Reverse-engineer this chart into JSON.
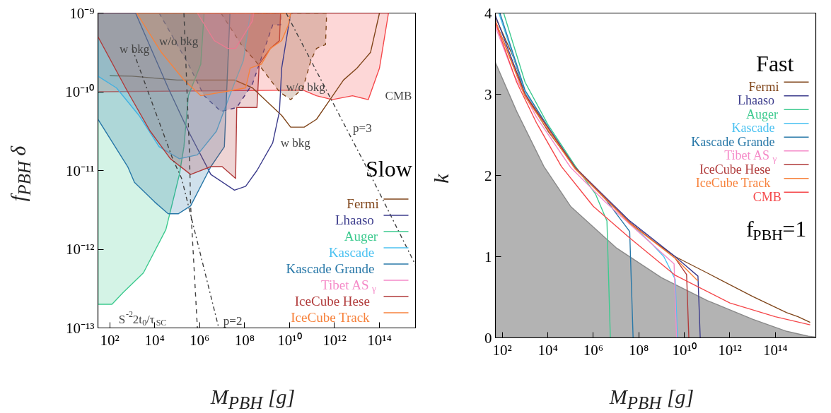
{
  "chart_data": [
    {
      "type": "area",
      "xlabel": "M$_{PBH}$ [g]",
      "ylabel": "f$_{PBH}$ δ",
      "log": "xy",
      "legend": "bottom right",
      "xlim": [
        30,
        4000000000000000.0
      ],
      "ylim": [
        1e-13,
        1e-09
      ],
      "xticks": [
        {
          "value": 100.0,
          "label": "10²"
        },
        {
          "value": 10000.0,
          "label": "10⁴"
        },
        {
          "value": 1000000.0,
          "label": "10⁶"
        },
        {
          "value": 100000000.0,
          "label": "10⁸"
        },
        {
          "value": 10000000000.0,
          "label": "10¹⁰"
        },
        {
          "value": 1000000000000.0,
          "label": "10¹²"
        },
        {
          "value": 100000000000000.0,
          "label": "10¹⁴"
        }
      ],
      "yticks": [
        {
          "value": 1e-13,
          "label": "10⁻¹³"
        },
        {
          "value": 1e-12,
          "label": "10⁻¹²"
        },
        {
          "value": 1e-11,
          "label": "10⁻¹¹"
        },
        {
          "value": 1e-10,
          "label": "10⁻¹⁰"
        },
        {
          "value": 1e-09,
          "label": "10⁻⁹"
        }
      ],
      "series": [
        {
          "type": "area",
          "color": "#f5484b",
          "x": [
            30,
            30,
            39800000000.0,
            158000000000.0,
            794000000000.0,
            6310000000000.0,
            31600000000000.0,
            100000000000000.0,
            251000000000000.0
          ],
          "values": [
            1e-09,
            1e-10,
            1.05e-10,
            8.91e-11,
            7.94e-11,
            8.91e-11,
            7.94e-11,
            2e-10,
            1e-09
          ]
        },
        {
          "type": "area",
          "color": "#80461b",
          "line_style": "dashed",
          "x": [
            8910000.0,
            70800000.0,
            562000000.0,
            3550000000.0,
            11200000000.0,
            39800000000.0,
            89100000000.0,
            158000000000.0,
            398000000000.0,
            447000000000.0
          ],
          "values": [
            1e-09,
            3.98e-10,
            2e-10,
            1e-10,
            7.94e-11,
            1.12e-10,
            2.51e-10,
            3.55e-10,
            3.98e-10,
            1e-09
          ]
        },
        {
          "type": "area",
          "color": "#3c3c8c",
          "line_style": "dashed",
          "x": [
            15800.0,
            316000.0,
            1580000.0,
            8910000.0,
            44700000.0,
            224000000.0,
            891000000.0,
            1780000000.0,
            3980000000.0,
            3980000000.0
          ],
          "values": [
            1e-09,
            2.24e-10,
            8.91e-11,
            5.62e-11,
            6.31e-11,
            1.26e-10,
            3.98e-10,
            7.08e-10,
            7.08e-10,
            1e-09
          ]
        },
        {
          "name": "Fermi",
          "type": "line",
          "color": "#80461b",
          "x": [
            100,
            1000.0,
            100000.0,
            35500000.0,
            224000000.0,
            4470000000.0,
            11200000000.0,
            44700000000.0,
            158000000000.0,
            631000000000.0,
            2510000000000.0,
            10000000000000.0,
            39800000000000.0,
            100000000000000.0
          ],
          "values": [
            1.6e-10,
            1.58e-10,
            1.41e-10,
            1.41e-10,
            1.12e-10,
            5.01e-11,
            3.55e-11,
            3.55e-11,
            4.47e-11,
            7.94e-11,
            1.41e-10,
            2e-10,
            3.16e-10,
            1e-09
          ]
        },
        {
          "name": "Lhaaso",
          "type": "line",
          "color": "#3c3c8c",
          "x": [
            1410.0,
            39800.0,
            316000.0,
            3160000.0,
            35500000.0,
            112000000.0,
            355000000.0,
            1780000000.0,
            3550000000.0,
            4470000000.0,
            11200000000.0
          ],
          "values": [
            1e-09,
            1.12e-10,
            3.16e-11,
            8.91e-12,
            5.62e-12,
            6.31e-12,
            1e-11,
            2.24e-11,
            5.62e-11,
            2e-10,
            1e-09
          ]
        },
        {
          "name": "Auger",
          "type": "area",
          "color": "#3dca8f",
          "x": [
            30,
            30,
            126,
            398,
            3160.0,
            31600.0,
            126000.0,
            200000.0,
            316000.0,
            1120000.0,
            1580000.0
          ],
          "values": [
            1e-09,
            2e-13,
            2e-13,
            2.82e-13,
            5.01e-13,
            1.78e-12,
            8.91e-12,
            2e-11,
            8.91e-11,
            2.24e-10,
            1e-09
          ]
        },
        {
          "name": "Kascade",
          "type": "area",
          "color": "#4cc2f1",
          "x": [
            30,
            30,
            200,
            2000.0,
            15800.0,
            126000.0,
            794000.0,
            5620000.0,
            25100000.0,
            89100000.0,
            178000000.0
          ],
          "values": [
            1e-09,
            1.58e-10,
            1.12e-10,
            5.01e-11,
            2e-11,
            1.41e-11,
            1.58e-11,
            3.16e-11,
            1e-10,
            2.51e-10,
            1e-09
          ]
        },
        {
          "name": "Kascade Grande",
          "type": "area",
          "color": "#2878a8",
          "x": [
            30,
            30,
            631,
            1260.0,
            10000.0,
            39800.0,
            112000.0,
            398000.0,
            3160000.0,
            12600000.0,
            22400000.0
          ],
          "values": [
            1e-09,
            4.47e-11,
            1.12e-11,
            7.08e-12,
            3.98e-12,
            2.82e-12,
            2.82e-12,
            3.55e-12,
            1.12e-11,
            2e-11,
            1e-09
          ]
        },
        {
          "name": "Tibet AS$_{γ}$",
          "type": "area",
          "color": "#f58ac8",
          "x": [
            794000.0,
            4470000.0,
            17800000.0,
            39800000.0,
            224000000.0,
            251000000.0
          ],
          "values": [
            1e-09,
            4.47e-10,
            3.55e-10,
            3.55e-10,
            7.94e-10,
            1e-09
          ]
        },
        {
          "name": "IceCube Hese",
          "type": "area",
          "color": "#b03a3a",
          "x": [
            30,
            30,
            631,
            6310.0,
            50100.0,
            398000.0,
            3160000.0,
            10000000.0,
            39800000.0,
            44700000.0,
            355000000.0,
            447000000.0,
            1410000000.0,
            3550000000.0,
            3980000000.0
          ],
          "values": [
            1e-09,
            5.01e-10,
            1e-10,
            3.16e-11,
            1.41e-11,
            8.91e-12,
            1.12e-11,
            1.12e-11,
            7.94e-12,
            6.31e-11,
            6.31e-11,
            2.24e-10,
            3.55e-10,
            4.47e-10,
            1e-09
          ]
        },
        {
          "name": "IceCube Track",
          "type": "area",
          "color": "#f7823c",
          "x": [
            1580.0,
            20000.0,
            200000.0,
            1120000.0,
            12600000.0,
            112000000.0,
            178000000.0,
            562000000.0,
            1410000000.0,
            4470000000.0,
            8910000000.0,
            11200000000.0
          ],
          "values": [
            1e-09,
            3.16e-10,
            1.41e-10,
            8.91e-11,
            1e-10,
            1.12e-10,
            2e-10,
            2.24e-10,
            3.55e-10,
            4.47e-10,
            7.08e-10,
            1e-09
          ]
        },
        {
          "type": "line",
          "color": "#404040",
          "line_style": "dashed",
          "x": [
            200000.0,
            355000.0,
            398000.0,
            794000.0
          ],
          "values": [
            1e-09,
            1.58e-11,
            3.55e-12,
            1e-13
          ]
        },
        {
          "type": "line",
          "color": "#404040",
          "line_style": "dashdot",
          "x": [
            1000.0,
            63100.0,
            158000.0,
            7080000.0
          ],
          "values": [
            3.55e-10,
            1.41e-11,
            7.94e-12,
            1e-13
          ]
        },
        {
          "type": "line",
          "color": "#404040",
          "line_style": "dashdot",
          "x": [
            7080000000.0,
            31600000000000.0,
            3980000000000000.0
          ],
          "values": [
            1e-09,
            1e-11,
            6.31e-13
          ]
        }
      ],
      "annotations": [
        {
          "text": "w/o bkg",
          "x": 100000.0,
          "y": 5e-10
        },
        {
          "text": "w/o bkg",
          "x": 44700000000.0,
          "y": 1.3e-10
        },
        "w bkg",
        "w bkg",
        "CMB",
        "p=3",
        "S$^{-2}$2t$_{0}$/τ$_{SC}$",
        "p=2",
        "Slow"
      ]
    },
    {
      "type": "line",
      "xlabel": "M$_{PBH}$ [g]",
      "ylabel": "k",
      "log": "x",
      "legend": "top right",
      "xlim": [
        50,
        6000000000000000.0
      ],
      "ylim": [
        0,
        4
      ],
      "xticks": [
        {
          "value": 100.0,
          "label": "10²"
        },
        {
          "value": 10000.0,
          "label": "10⁴"
        },
        {
          "value": 1000000.0,
          "label": "10⁶"
        },
        {
          "value": 100000000.0,
          "label": "10⁸"
        },
        {
          "value": 10000000000.0,
          "label": "10¹⁰"
        },
        {
          "value": 1000000000000.0,
          "label": "10¹²"
        },
        {
          "value": 100000000000000.0,
          "label": "10¹⁴"
        }
      ],
      "yticks": [
        0,
        1,
        2,
        3,
        4
      ],
      "series": [
        {
          "type": "area",
          "color": "#8a8a8a",
          "x": [
            50,
            427,
            6760.0,
            100000.0,
            10000000.0,
            1000000000.0,
            100000000000.0,
            10000000000000.0,
            316000000000000.0,
            2820000000000000.0,
            6000000000000000.0
          ],
          "values": [
            3.39,
            2.79,
            2.11,
            1.62,
            1.11,
            0.74,
            0.46,
            0.23,
            0.08,
            0.02,
            0.01
          ]
        },
        {
          "name": "Fermi",
          "color": "#80461b",
          "x": [
            50,
            316,
            1000.0,
            10000.0,
            158000.0,
            3160000.0,
            39800000.0,
            398000000.0,
            3980000000.0,
            100000000000.0,
            10000000000000.0,
            316000000000000.0,
            1000000000000000.0,
            3390000000000000.0
          ],
          "values": [
            3.95,
            3.45,
            3.0,
            2.55,
            2.1,
            1.72,
            1.42,
            1.2,
            1.0,
            0.8,
            0.51,
            0.31,
            0.26,
            0.19
          ]
        },
        {
          "name": "Lhaaso",
          "color": "#3c3c8c",
          "x": [
            50,
            1000.0,
            158000.0,
            39800000.0,
            3980000000.0,
            39800000000.0,
            50100000000.0
          ],
          "values": [
            3.97,
            3.0,
            2.1,
            1.44,
            1.0,
            0.76,
            0
          ]
        },
        {
          "name": "Auger",
          "color": "#3dca8f",
          "x": [
            115,
            1000.0,
            10000.0,
            158000.0,
            1260000.0,
            3980000.0,
            5620000.0
          ],
          "values": [
            4.0,
            3.15,
            2.63,
            2.12,
            1.77,
            1.44,
            0
          ]
        },
        {
          "name": "Kascade",
          "color": "#4cc2f1",
          "x": [
            70.8,
            1000.0,
            158000.0,
            39800000.0,
            398000000.0,
            1260000000.0,
            3980000000.0,
            5010000000.0
          ],
          "values": [
            4.0,
            3.03,
            2.1,
            1.42,
            1.15,
            1.0,
            0.72,
            0
          ]
        },
        {
          "name": "Kascade Grande",
          "color": "#2878a8",
          "x": [
            79,
            1000.0,
            10000.0,
            158000.0,
            3160000.0,
            39800000.0,
            56200000.0
          ],
          "values": [
            4.0,
            3.05,
            2.6,
            2.1,
            1.72,
            1.31,
            0
          ]
        },
        {
          "name": "Tibet AS$_{γ}$",
          "color": "#f58ac8",
          "x": [
            50,
            316,
            3160.0,
            100000.0,
            3160000.0,
            39800000.0,
            398000000.0,
            3550000000.0,
            4570000000.0
          ],
          "values": [
            3.83,
            3.25,
            2.72,
            2.1,
            1.68,
            1.4,
            1.15,
            0.91,
            0
          ]
        },
        {
          "name": "IceCube Hese",
          "color": "#b03a3a",
          "x": [
            50,
            1000.0,
            158000.0,
            39800000.0,
            3980000000.0,
            12600000000.0,
            15800000000.0
          ],
          "values": [
            3.9,
            3.0,
            2.1,
            1.42,
            0.98,
            0.78,
            0
          ]
        },
        {
          "name": "IceCube Track",
          "color": "#f7823c",
          "x": [
            50,
            1000.0,
            158000.0,
            39800000.0,
            3980000000.0,
            39800000000.0
          ],
          "values": [
            3.9,
            2.97,
            2.08,
            1.41,
            0.98,
            0.7
          ]
        },
        {
          "name": "CMB",
          "color": "#f5484b",
          "x": [
            50,
            427,
            3160.0,
            39800.0,
            1000000.0,
            39800000.0,
            3980000000.0,
            1000000000000.0,
            100000000000000.0,
            3390000000000000.0
          ],
          "values": [
            3.88,
            3.15,
            2.65,
            2.11,
            1.62,
            1.23,
            0.77,
            0.43,
            0.26,
            0.16
          ]
        }
      ],
      "annotations": [
        "Fast",
        "f$_{PBH}$=1"
      ]
    }
  ]
}
